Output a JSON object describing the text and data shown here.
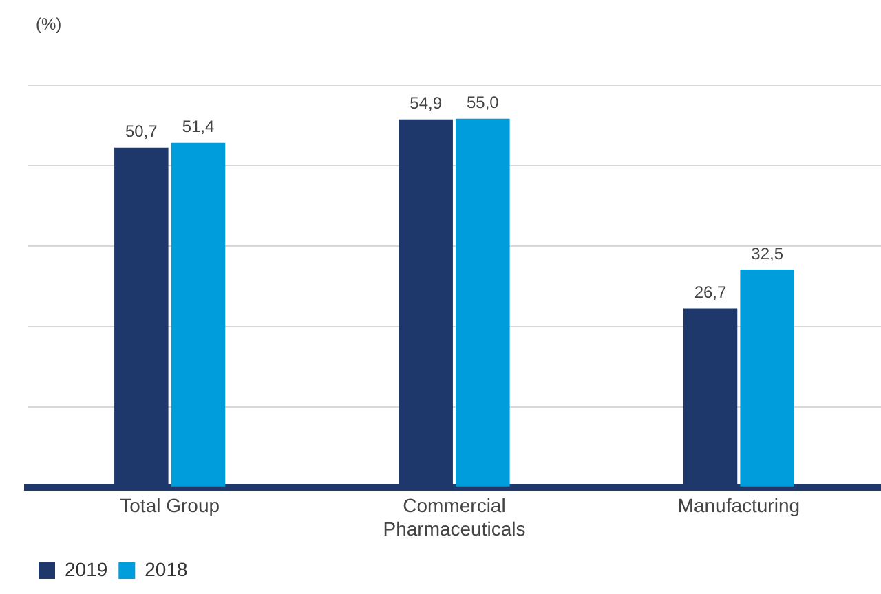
{
  "chart_data": {
    "type": "bar",
    "ylabel": "(%)",
    "categories": [
      "Total Group",
      "Commercial Pharmaceuticals",
      "Manufacturing"
    ],
    "series": [
      {
        "name": "2019",
        "color": "#1f386b",
        "values": [
          50.7,
          54.9,
          26.7
        ],
        "value_labels": [
          "50,7",
          "54,9",
          "26,7"
        ]
      },
      {
        "name": "2018",
        "color": "#009ddc",
        "values": [
          51.4,
          55.0,
          32.5
        ],
        "value_labels": [
          "51,4",
          "55,0",
          "32,5"
        ]
      }
    ],
    "ylim": [
      0,
      60
    ],
    "yticks": [
      {
        "value": 0,
        "label": null
      },
      {
        "value": 12,
        "label": null
      },
      {
        "value": 24,
        "label": null
      },
      {
        "value": 36,
        "label": null
      },
      {
        "value": 48,
        "label": null
      },
      {
        "value": 60,
        "label": null
      }
    ],
    "grid": "y",
    "tick_labels": "x",
    "legend": "bottom left"
  }
}
